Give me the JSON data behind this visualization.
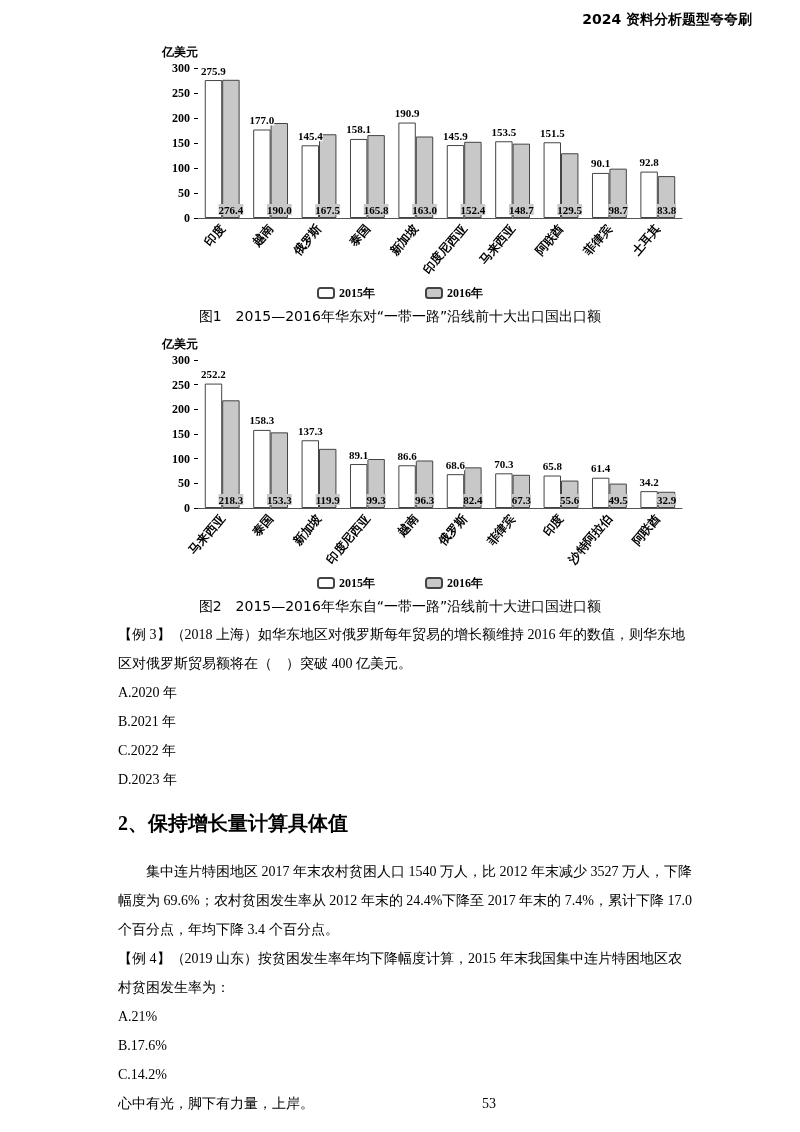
{
  "chart_data": [
    {
      "type": "bar",
      "title": "图1　2015—2016年华东对“一带一路”沿线前十大出口国出口额",
      "ylabel": "亿美元",
      "annotations": [
        "2024 资料分析题型夸夸刷"
      ],
      "categories": [
        "印度",
        "越南",
        "俄罗斯",
        "泰国",
        "新加坡",
        "印度尼西亚",
        "马来西亚",
        "阿联酋",
        "菲律宾",
        "土耳其"
      ],
      "series": [
        {
          "name": "2015年",
          "color": "#ffffff",
          "values": [
            275.9,
            177.0,
            145.4,
            158.1,
            190.9,
            145.9,
            153.5,
            151.5,
            90.1,
            92.8
          ],
          "value_labels": [
            "275.9",
            "177.0",
            "145.4",
            "158.1",
            "190.9",
            "145.9",
            "153.5",
            "151.5",
            "90.1",
            "92.8"
          ]
        },
        {
          "name": "2016年",
          "color": "#c8c8c8",
          "values": [
            276.4,
            190.0,
            167.5,
            165.8,
            163.0,
            152.4,
            148.7,
            129.5,
            98.7,
            83.8
          ],
          "value_labels": [
            "276.4",
            "190.0",
            "167.5",
            "165.8",
            "163.0",
            "152.4",
            "148.7",
            "129.5",
            "98.7",
            "83.8"
          ]
        }
      ],
      "ylim": [
        0,
        300
      ],
      "yticks": [
        0,
        50,
        100,
        150,
        200,
        250,
        300
      ],
      "grid": false,
      "legend": "bottom"
    },
    {
      "type": "bar",
      "title": "图2　2015—2016年华东自“一带一路”沿线前十大进口国进口额",
      "ylabel": "亿美元",
      "categories": [
        "马来西亚",
        "泰国",
        "新加坡",
        "印度尼西亚",
        "越南",
        "俄罗斯",
        "菲律宾",
        "印度",
        "沙特阿拉伯",
        "阿联酋"
      ],
      "series": [
        {
          "name": "2015年",
          "color": "#ffffff",
          "values": [
            252.2,
            158.3,
            137.3,
            89.1,
            86.6,
            68.6,
            70.3,
            65.8,
            61.4,
            34.2
          ],
          "value_labels": [
            "252.2",
            "158.3",
            "137.3",
            "89.1",
            "86.6",
            "68.6",
            "70.3",
            "65.8",
            "61.4",
            "34.2"
          ]
        },
        {
          "name": "2016年",
          "color": "#c8c8c8",
          "values": [
            218.3,
            153.3,
            119.9,
            99.3,
            96.3,
            82.4,
            67.3,
            55.6,
            49.5,
            32.9
          ],
          "value_labels": [
            "218.3",
            "153.3",
            "119.9",
            "99.3",
            "96.3",
            "82.4",
            "67.3",
            "55.6",
            "49.5",
            "32.9"
          ]
        }
      ],
      "ylim": [
        0,
        300
      ],
      "yticks": [
        0,
        50,
        100,
        150,
        200,
        250,
        300
      ],
      "grid": false,
      "legend": "bottom"
    },
    {
      "type": "other",
      "annotations": [
        "【例 3】（2018 上海）如华东地区对俄罗斯每年贸易的增长额维持 2016 年的数值，则华东地区对俄罗斯贸易额将在（　）突破 400 亿美元。",
        "A.2020 年",
        "B.2021 年",
        "C.2022 年",
        "D.2023 年"
      ]
    },
    {
      "type": "other",
      "title": "2、保持增长量计算具体值",
      "annotations": [
        "　　集中连片特困地区 2017 年末农村贫困人口 1540 万人，比 2012 年末减少 3527 万人，下降幅度为 69.6%；农村贫困发生率从 2012 年末的 24.4%下降至 2017 年末的 7.4%，累计下降 17.0 个百分点，年均下降 3.4 个百分点。",
        "【例 4】（2019 山东）按贫困发生率年均下降幅度计算，2015 年末我国集中连片特困地区农村贫困发生率为：",
        "A.21%",
        "B.17.6%",
        "C.14.2%",
        "心中有光，脚下有力量，上岸。　　　　　　　　　　　　53"
      ]
    }
  ]
}
